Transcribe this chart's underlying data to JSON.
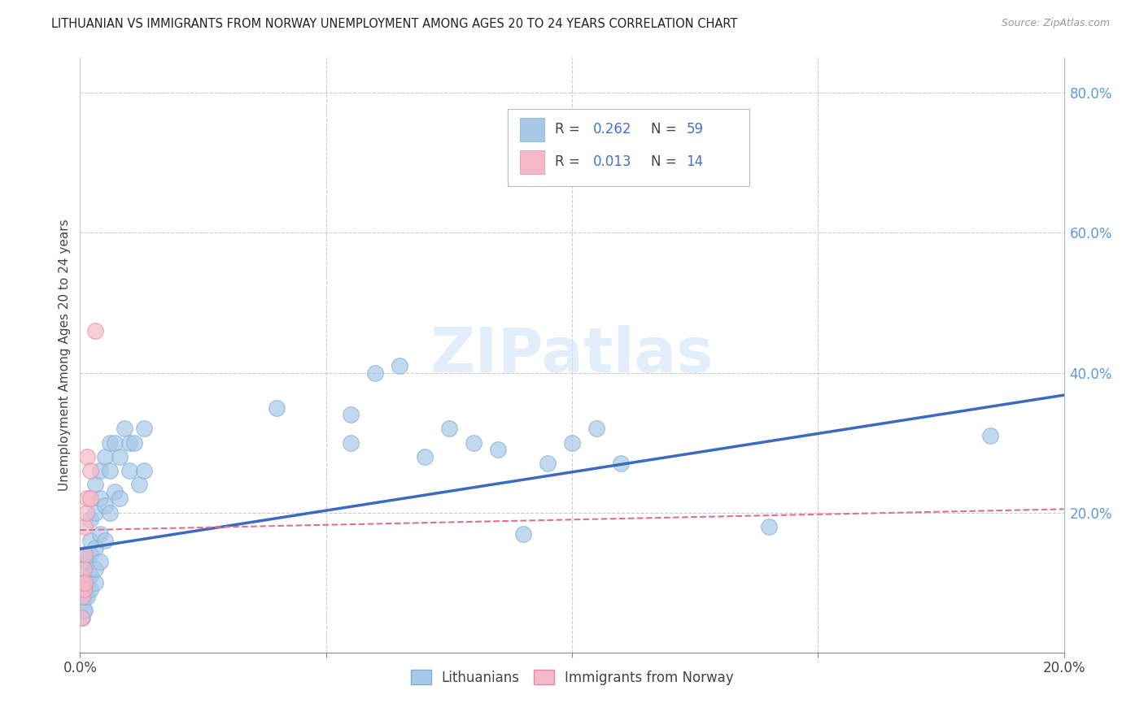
{
  "title": "LITHUANIAN VS IMMIGRANTS FROM NORWAY UNEMPLOYMENT AMONG AGES 20 TO 24 YEARS CORRELATION CHART",
  "source": "Source: ZipAtlas.com",
  "ylabel": "Unemployment Among Ages 20 to 24 years",
  "legend_label1": "Lithuanians",
  "legend_label2": "Immigrants from Norway",
  "blue_color": "#a8c8e8",
  "blue_edge_color": "#7aadd4",
  "pink_color": "#f4b8c8",
  "pink_edge_color": "#e888a8",
  "blue_line_color": "#3a6bbf",
  "pink_line_color": "#e07090",
  "watermark": "ZIPatlas",
  "xlim": [
    0.0,
    0.2
  ],
  "ylim": [
    0.0,
    0.85
  ],
  "yticks": [
    0.2,
    0.4,
    0.6,
    0.8
  ],
  "ytick_labels": [
    "20.0%",
    "40.0%",
    "60.0%",
    "80.0%"
  ],
  "xtick_labels_show": [
    "0.0%",
    "20.0%"
  ],
  "blue_x": [
    0.0005,
    0.0005,
    0.0008,
    0.0008,
    0.001,
    0.001,
    0.001,
    0.001,
    0.001,
    0.0015,
    0.0015,
    0.0015,
    0.002,
    0.002,
    0.002,
    0.002,
    0.002,
    0.003,
    0.003,
    0.003,
    0.003,
    0.003,
    0.004,
    0.004,
    0.004,
    0.004,
    0.005,
    0.005,
    0.005,
    0.006,
    0.006,
    0.006,
    0.007,
    0.007,
    0.008,
    0.008,
    0.009,
    0.01,
    0.01,
    0.011,
    0.012,
    0.013,
    0.013,
    0.04,
    0.055,
    0.055,
    0.06,
    0.065,
    0.07,
    0.075,
    0.08,
    0.085,
    0.09,
    0.095,
    0.1,
    0.105,
    0.11,
    0.14,
    0.185
  ],
  "blue_y": [
    0.05,
    0.08,
    0.06,
    0.09,
    0.06,
    0.08,
    0.1,
    0.12,
    0.14,
    0.08,
    0.1,
    0.13,
    0.09,
    0.11,
    0.14,
    0.16,
    0.19,
    0.1,
    0.12,
    0.15,
    0.2,
    0.24,
    0.13,
    0.17,
    0.22,
    0.26,
    0.16,
    0.21,
    0.28,
    0.2,
    0.26,
    0.3,
    0.23,
    0.3,
    0.22,
    0.28,
    0.32,
    0.26,
    0.3,
    0.3,
    0.24,
    0.26,
    0.32,
    0.35,
    0.3,
    0.34,
    0.4,
    0.41,
    0.28,
    0.32,
    0.3,
    0.29,
    0.17,
    0.27,
    0.3,
    0.32,
    0.27,
    0.18,
    0.31
  ],
  "pink_x": [
    0.0003,
    0.0005,
    0.0005,
    0.0007,
    0.0008,
    0.001,
    0.001,
    0.001,
    0.0013,
    0.0015,
    0.0015,
    0.002,
    0.002,
    0.003
  ],
  "pink_y": [
    0.05,
    0.08,
    0.1,
    0.09,
    0.12,
    0.1,
    0.14,
    0.18,
    0.2,
    0.22,
    0.28,
    0.22,
    0.26,
    0.46
  ],
  "blue_trend_x": [
    0.0,
    0.2
  ],
  "blue_trend_y": [
    0.148,
    0.368
  ],
  "pink_trend_x": [
    0.0,
    0.2
  ],
  "pink_trend_y": [
    0.175,
    0.205
  ]
}
